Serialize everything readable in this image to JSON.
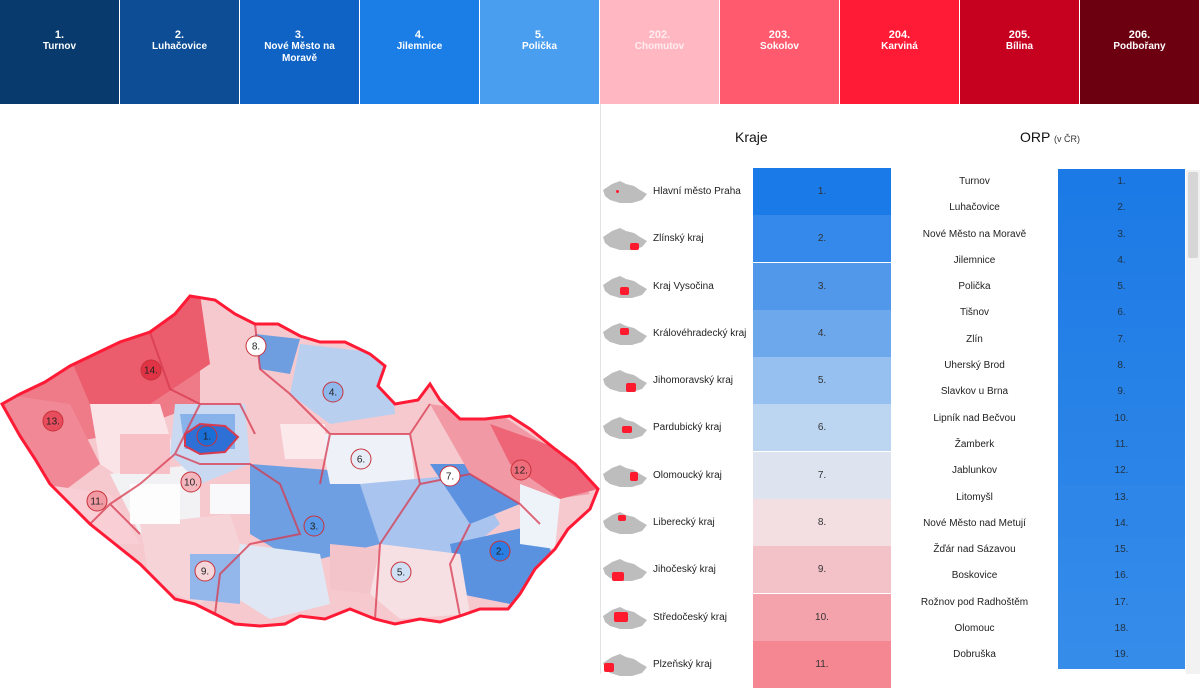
{
  "top_ranks": [
    {
      "rank": "1.",
      "name": "Turnov",
      "color": "#083a6e"
    },
    {
      "rank": "2.",
      "name": "Luhačovice",
      "color": "#0c4d95"
    },
    {
      "rank": "3.",
      "name": "Nové Město na Moravě",
      "color": "#0f63c4"
    },
    {
      "rank": "4.",
      "name": "Jilemnice",
      "color": "#1b7ee6"
    },
    {
      "rank": "5.",
      "name": "Polička",
      "color": "#4a9ef0"
    },
    {
      "rank": "202.",
      "name": "Chomutov",
      "color": "#ffb8c2"
    },
    {
      "rank": "203.",
      "name": "Sokolov",
      "color": "#ff5a6e"
    },
    {
      "rank": "204.",
      "name": "Karviná",
      "color": "#ff1a35"
    },
    {
      "rank": "205.",
      "name": "Bílina",
      "color": "#c6001f"
    },
    {
      "rank": "206.",
      "name": "Podbořany",
      "color": "#6d0010"
    }
  ],
  "headers": {
    "kraje": "Kraje",
    "orp": "ORP",
    "orp_note": "(v ČR)"
  },
  "kraje": [
    {
      "name": "Hlavní město Praha",
      "rank": "1.",
      "color": "#1a7ae8"
    },
    {
      "name": "Zlínský kraj",
      "rank": "2.",
      "color": "#3589ea"
    },
    {
      "name": "Kraj Vysočina",
      "rank": "3.",
      "color": "#5298ea"
    },
    {
      "name": "Královéhradecký kraj",
      "rank": "4.",
      "color": "#6ea8ec"
    },
    {
      "name": "Jihomoravský kraj",
      "rank": "5.",
      "color": "#96c0ef"
    },
    {
      "name": "Pardubický kraj",
      "rank": "6.",
      "color": "#bcd5f1"
    },
    {
      "name": "Olomoucký kraj",
      "rank": "7.",
      "color": "#dde4f0"
    },
    {
      "name": "Liberecký kraj",
      "rank": "8.",
      "color": "#f3dfe2"
    },
    {
      "name": "Jihočeský kraj",
      "rank": "9.",
      "color": "#f3c2c8"
    },
    {
      "name": "Středočeský kraj",
      "rank": "10.",
      "color": "#f4a3ac"
    },
    {
      "name": "Plzeňský kraj",
      "rank": "11.",
      "color": "#f48792"
    }
  ],
  "orp": [
    {
      "name": "Turnov",
      "rank": "1.",
      "color": "#1c7ae6"
    },
    {
      "name": "Luhačovice",
      "rank": "2.",
      "color": "#1d7be6"
    },
    {
      "name": "Nové Město na Moravě",
      "rank": "3.",
      "color": "#1f7ce6"
    },
    {
      "name": "Jilemnice",
      "rank": "4.",
      "color": "#207de6"
    },
    {
      "name": "Polička",
      "rank": "5.",
      "color": "#227ee6"
    },
    {
      "name": "Tišnov",
      "rank": "6.",
      "color": "#237fe7"
    },
    {
      "name": "Zlín",
      "rank": "7.",
      "color": "#2480e7"
    },
    {
      "name": "Uherský Brod",
      "rank": "8.",
      "color": "#2681e7"
    },
    {
      "name": "Slavkov u Brna",
      "rank": "9.",
      "color": "#2782e7"
    },
    {
      "name": "Lipník nad Bečvou",
      "rank": "10.",
      "color": "#2983e7"
    },
    {
      "name": "Žamberk",
      "rank": "11.",
      "color": "#2a84e8"
    },
    {
      "name": "Jablunkov",
      "rank": "12.",
      "color": "#2b85e8"
    },
    {
      "name": "Litomyšl",
      "rank": "13.",
      "color": "#2d86e8"
    },
    {
      "name": "Nové Město nad Metují",
      "rank": "14.",
      "color": "#2e87e8"
    },
    {
      "name": "Žďár nad Sázavou",
      "rank": "15.",
      "color": "#3088e8"
    },
    {
      "name": "Boskovice",
      "rank": "16.",
      "color": "#3189e9"
    },
    {
      "name": "Rožnov pod Radhoštěm",
      "rank": "17.",
      "color": "#338ae9"
    },
    {
      "name": "Olomouc",
      "rank": "18.",
      "color": "#348be9"
    },
    {
      "name": "Dobruška",
      "rank": "19.",
      "color": "#368ce9"
    }
  ],
  "map_pins": [
    {
      "label": "1.",
      "color": "#1a6fd6"
    },
    {
      "label": "2.",
      "color": "#2b7ee3"
    },
    {
      "label": "3.",
      "color": "#5a9ae8"
    },
    {
      "label": "4.",
      "color": "#8fb8ec"
    },
    {
      "label": "5.",
      "color": "#cfe0f5"
    },
    {
      "label": "6.",
      "color": "#e6edf7"
    },
    {
      "label": "7.",
      "color": "#ffffff"
    },
    {
      "label": "8.",
      "color": "#ffffff"
    },
    {
      "label": "9.",
      "color": "#f7d6da"
    },
    {
      "label": "10.",
      "color": "#f4b7be"
    },
    {
      "label": "11.",
      "color": "#f29aa4"
    },
    {
      "label": "12.",
      "color": "#ee6d7b"
    },
    {
      "label": "13.",
      "color": "#e84d5d"
    },
    {
      "label": "14.",
      "color": "#e03446"
    }
  ]
}
